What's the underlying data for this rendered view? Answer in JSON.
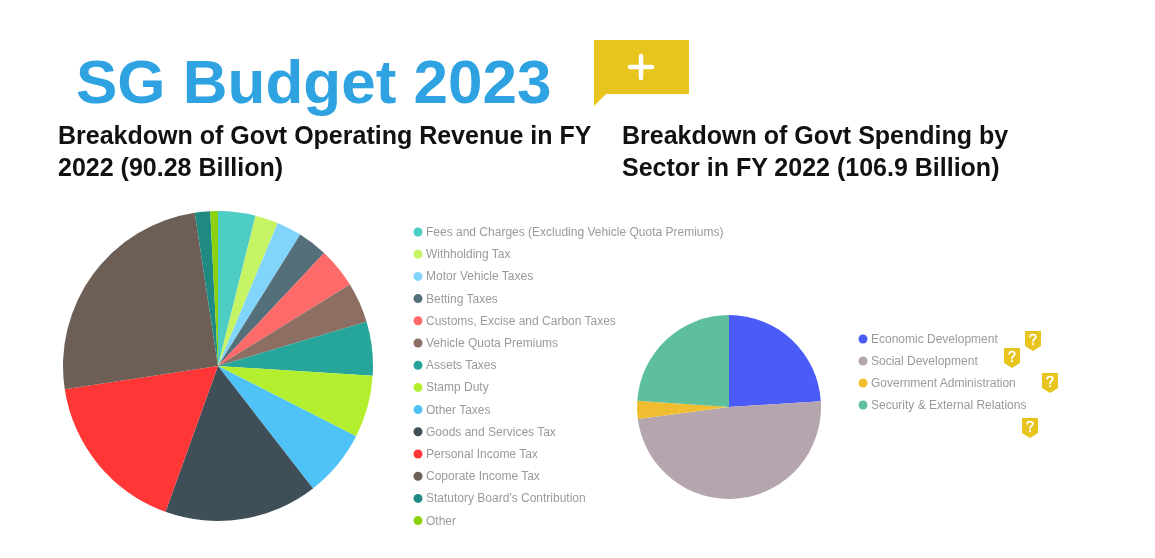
{
  "chart_data": [
    {
      "type": "pie",
      "title": "SG Budget 2023",
      "subtitle": "Breakdown of Govt Operating Revenue in FY 2022 (90.28 Billion)",
      "categories": [
        "Fees and Charges (Excluding Vehicle Quota Premiums)",
        "Withholding Tax",
        "Motor Vehicle Taxes",
        "Betting Taxes",
        "Customs, Excise and Carbon Taxes",
        "Vehicle Quota Premiums",
        "Assets Taxes",
        "Stamp Duty",
        "Other Taxes",
        "Goods and Services Tax",
        "Personal Income Tax",
        "Coporate Income Tax",
        "Statutory Board's Contribution",
        "Other"
      ],
      "values": [
        3.9,
        2.4,
        2.6,
        3.1,
        4.2,
        4.2,
        5.6,
        6.5,
        7.0,
        16.0,
        17.1,
        25.0,
        1.6,
        0.8
      ],
      "colors": [
        "#4ecdc4",
        "#c7f464",
        "#81d4fa",
        "#546e7a",
        "#fd6a6a",
        "#8d6e63",
        "#26a69a",
        "#b4ef2f",
        "#4fc3f7",
        "#3e4f58",
        "#fe3636",
        "#6d5f55",
        "#1e8a82",
        "#8bd10e"
      ],
      "legend": "right"
    },
    {
      "type": "pie",
      "title": "Breakdown of Govt Spending by Sector in FY 2022 (106.9 Billion)",
      "categories": [
        "Economic Development",
        "Social Development",
        "Government Administration",
        "Security & External Relations"
      ],
      "values": [
        24.0,
        48.9,
        3.2,
        23.9
      ],
      "colors": [
        "#4b5bf8",
        "#b5a5ae",
        "#f0bd30",
        "#5dbf9c"
      ],
      "legend": "right"
    }
  ]
}
